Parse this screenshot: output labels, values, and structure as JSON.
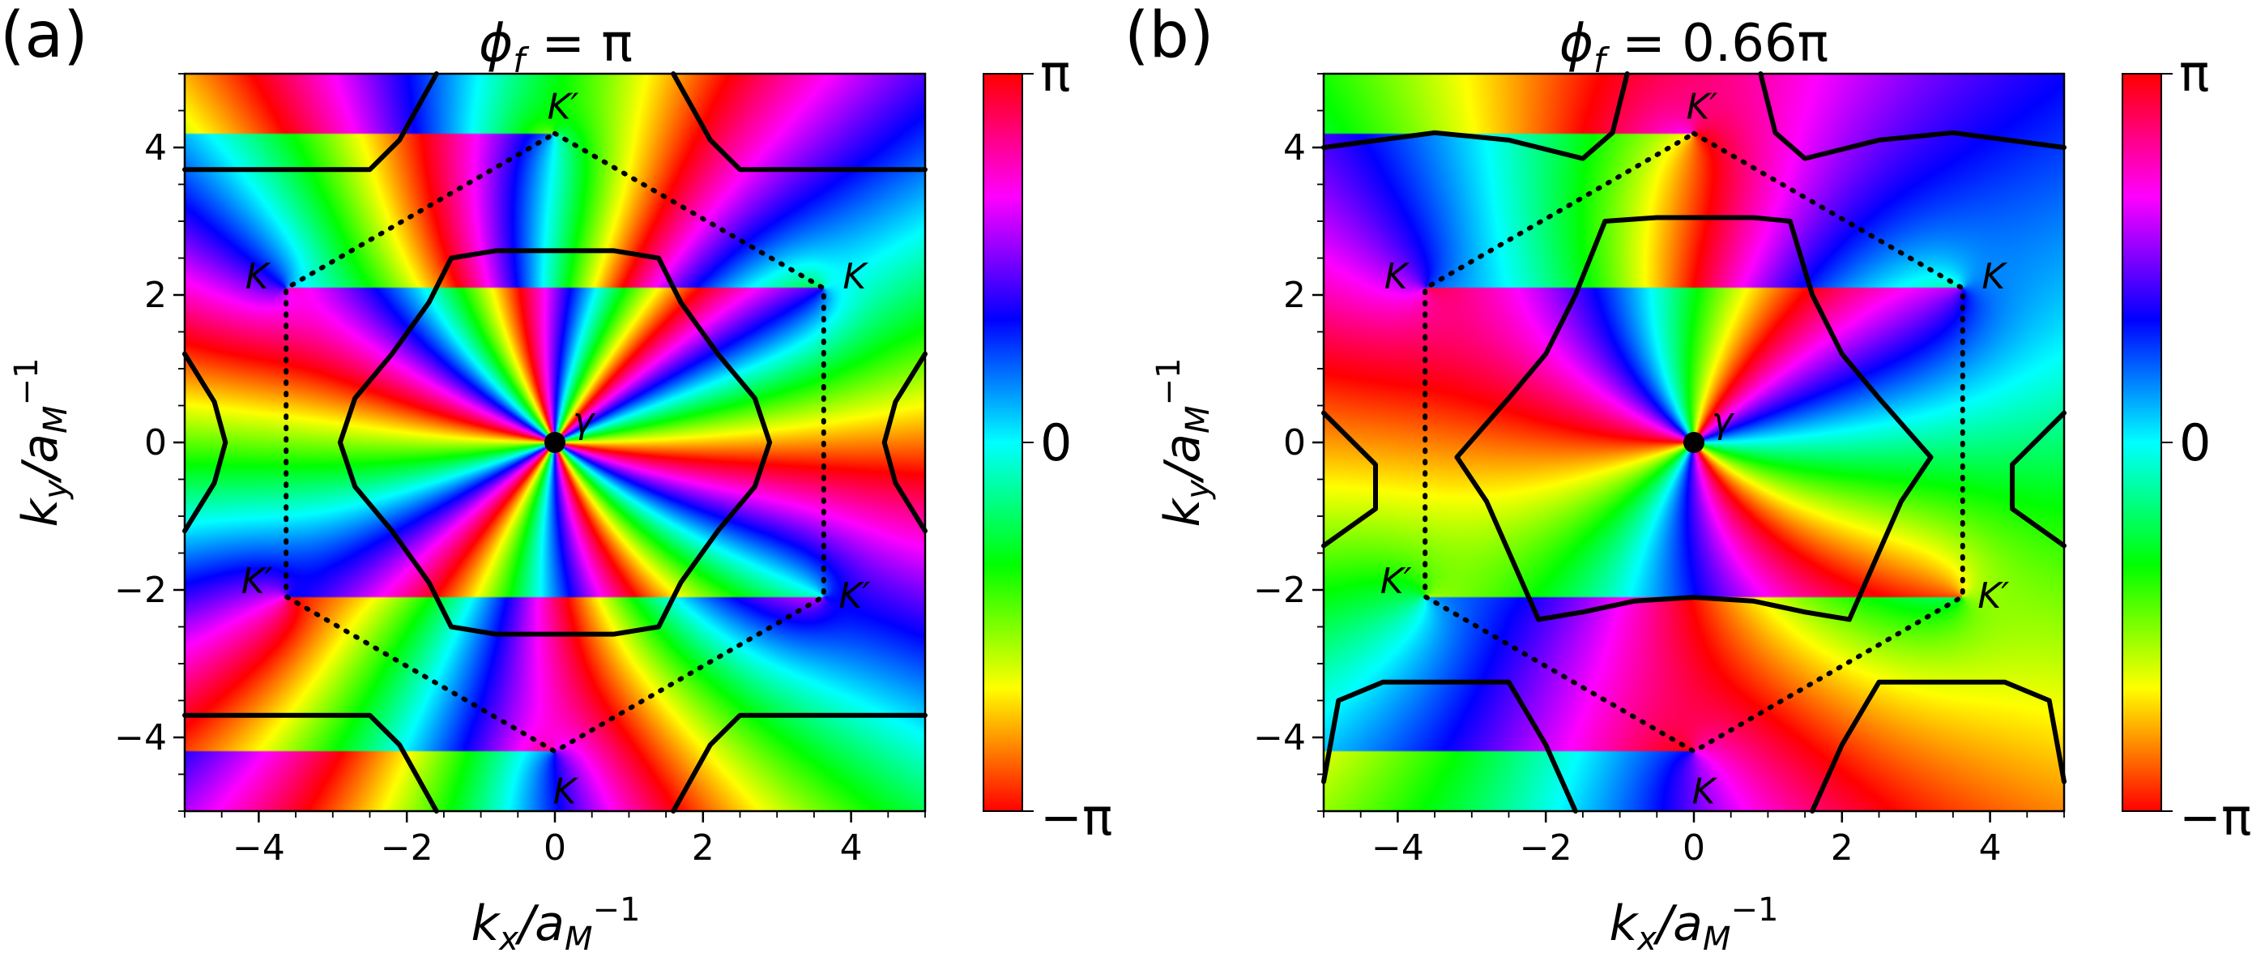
{
  "chart_data": [
    {
      "type": "heatmap",
      "panel_label": "(a)",
      "title": "ϕf = π",
      "title_parts": {
        "symbol": "ϕ",
        "sub": "f",
        "rest": " = π"
      },
      "xlabel": {
        "base": "k",
        "sub": "x",
        "mid": "/a",
        "sub2": "M",
        "sup": "−1"
      },
      "ylabel": {
        "base": "k",
        "sub": "y",
        "mid": "/a",
        "sub2": "M",
        "sup": "−1"
      },
      "xlim": [
        -5,
        5
      ],
      "ylim": [
        -5,
        5
      ],
      "xticks": [
        -4,
        -2,
        0,
        2,
        4
      ],
      "yticks": [
        -4,
        -2,
        0,
        2,
        4
      ],
      "xtick_labels": [
        "−4",
        "−2",
        "0",
        "2",
        "4"
      ],
      "ytick_labels": [
        "−4",
        "−2",
        "0",
        "2",
        "4"
      ],
      "colormap": "hsv",
      "colorbar": {
        "min_label": "−π",
        "mid_label": "0",
        "max_label": "π",
        "range": [
          -3.1416,
          3.1416
        ]
      },
      "phase_field": {
        "winding": 6,
        "offset": 0
      },
      "high_symmetry_points": [
        {
          "label": "γ",
          "x": 0,
          "y": 0,
          "marker": "dot"
        },
        {
          "label": "K",
          "x": -3.63,
          "y": 2.09
        },
        {
          "label": "K",
          "x": 3.63,
          "y": 2.09
        },
        {
          "label": "K",
          "x": 0,
          "y": -4.19
        },
        {
          "label": "K′",
          "x": 0,
          "y": 4.19
        },
        {
          "label": "K′",
          "x": -3.63,
          "y": -2.09
        },
        {
          "label": "K′",
          "x": 3.63,
          "y": -2.09
        }
      ],
      "brillouin_zone": [
        [
          0,
          4.19
        ],
        [
          3.63,
          2.09
        ],
        [
          3.63,
          -2.09
        ],
        [
          0,
          -4.19
        ],
        [
          -3.63,
          -2.09
        ],
        [
          -3.63,
          2.09
        ]
      ],
      "contours": [
        [
          [
            -2.9,
            0
          ],
          [
            -2.7,
            0.6
          ],
          [
            -2.2,
            1.2
          ],
          [
            -1.7,
            1.9
          ],
          [
            -1.4,
            2.5
          ],
          [
            -0.8,
            2.6
          ],
          [
            0,
            2.6
          ],
          [
            0.8,
            2.6
          ],
          [
            1.4,
            2.5
          ],
          [
            1.7,
            1.9
          ],
          [
            2.2,
            1.2
          ],
          [
            2.7,
            0.6
          ],
          [
            2.9,
            0
          ],
          [
            2.7,
            -0.6
          ],
          [
            2.2,
            -1.2
          ],
          [
            1.7,
            -1.9
          ],
          [
            1.4,
            -2.5
          ],
          [
            0.8,
            -2.6
          ],
          [
            0,
            -2.6
          ],
          [
            -0.8,
            -2.6
          ],
          [
            -1.4,
            -2.5
          ],
          [
            -1.7,
            -1.9
          ],
          [
            -2.2,
            -1.2
          ],
          [
            -2.7,
            -0.6
          ],
          [
            -2.9,
            0
          ]
        ],
        [
          [
            -5,
            3.7
          ],
          [
            -3.5,
            3.7
          ],
          [
            -2.5,
            3.7
          ],
          [
            -2.1,
            4.1
          ],
          [
            -1.6,
            5
          ]
        ],
        [
          [
            1.6,
            5
          ],
          [
            2.1,
            4.1
          ],
          [
            2.5,
            3.7
          ],
          [
            3.5,
            3.7
          ],
          [
            5,
            3.7
          ]
        ],
        [
          [
            -5,
            -3.7
          ],
          [
            -3.5,
            -3.7
          ],
          [
            -2.5,
            -3.7
          ],
          [
            -2.1,
            -4.1
          ],
          [
            -1.6,
            -5
          ]
        ],
        [
          [
            1.6,
            -5
          ],
          [
            2.1,
            -4.1
          ],
          [
            2.5,
            -3.7
          ],
          [
            3.5,
            -3.7
          ],
          [
            5,
            -3.7
          ]
        ],
        [
          [
            -5,
            1.2
          ],
          [
            -4.6,
            0.55
          ],
          [
            -4.45,
            0
          ],
          [
            -4.6,
            -0.55
          ],
          [
            -5,
            -1.2
          ]
        ],
        [
          [
            5,
            1.2
          ],
          [
            4.6,
            0.55
          ],
          [
            4.45,
            0
          ],
          [
            4.6,
            -0.55
          ],
          [
            5,
            -1.2
          ]
        ]
      ]
    },
    {
      "type": "heatmap",
      "panel_label": "(b)",
      "title": "ϕf = 0.66π",
      "title_parts": {
        "symbol": "ϕ",
        "sub": "f",
        "rest": " = 0.66π"
      },
      "xlabel": {
        "base": "k",
        "sub": "x",
        "mid": "/a",
        "sub2": "M",
        "sup": "−1"
      },
      "ylabel": {
        "base": "k",
        "sub": "y",
        "mid": "/a",
        "sub2": "M",
        "sup": "−1"
      },
      "xlim": [
        -5,
        5
      ],
      "ylim": [
        -5,
        5
      ],
      "xticks": [
        -4,
        -2,
        0,
        2,
        4
      ],
      "yticks": [
        -4,
        -2,
        0,
        2,
        4
      ],
      "xtick_labels": [
        "−4",
        "−2",
        "0",
        "2",
        "4"
      ],
      "ytick_labels": [
        "−4",
        "−2",
        "0",
        "2",
        "4"
      ],
      "colormap": "hsv",
      "colorbar": {
        "min_label": "−π",
        "mid_label": "0",
        "max_label": "π",
        "range": [
          -3.1416,
          3.1416
        ]
      },
      "phase_field": {
        "winding": 3,
        "offset": 2.07
      },
      "high_symmetry_points": [
        {
          "label": "γ",
          "x": 0,
          "y": 0,
          "marker": "dot"
        },
        {
          "label": "K",
          "x": -3.63,
          "y": 2.09
        },
        {
          "label": "K",
          "x": 3.63,
          "y": 2.09
        },
        {
          "label": "K",
          "x": 0,
          "y": -4.19
        },
        {
          "label": "K′",
          "x": 0,
          "y": 4.19
        },
        {
          "label": "K′",
          "x": -3.63,
          "y": -2.09
        },
        {
          "label": "K′",
          "x": 3.63,
          "y": -2.09
        }
      ],
      "brillouin_zone": [
        [
          0,
          4.19
        ],
        [
          3.63,
          2.09
        ],
        [
          3.63,
          -2.09
        ],
        [
          0,
          -4.19
        ],
        [
          -3.63,
          -2.09
        ],
        [
          -3.63,
          2.09
        ]
      ],
      "contours": [
        [
          [
            -1.2,
            3.0
          ],
          [
            -0.5,
            3.05
          ],
          [
            0.8,
            3.05
          ],
          [
            1.3,
            3.0
          ],
          [
            1.6,
            2.0
          ],
          [
            2.0,
            1.2
          ],
          [
            2.5,
            0.6
          ],
          [
            3.2,
            -0.2
          ],
          [
            2.8,
            -0.8
          ],
          [
            2.1,
            -2.4
          ],
          [
            1.5,
            -2.3
          ],
          [
            0.8,
            -2.15
          ],
          [
            0,
            -2.1
          ],
          [
            -0.8,
            -2.15
          ],
          [
            -1.5,
            -2.3
          ],
          [
            -2.1,
            -2.4
          ],
          [
            -2.8,
            -0.8
          ],
          [
            -3.2,
            -0.2
          ],
          [
            -2.5,
            0.6
          ],
          [
            -2.0,
            1.2
          ],
          [
            -1.6,
            2.0
          ],
          [
            -1.2,
            3.0
          ]
        ],
        [
          [
            -5,
            4.0
          ],
          [
            -3.5,
            4.2
          ],
          [
            -2.5,
            4.1
          ],
          [
            -1.5,
            3.85
          ],
          [
            -1.1,
            4.2
          ],
          [
            -0.9,
            5
          ]
        ],
        [
          [
            0.9,
            5
          ],
          [
            1.1,
            4.2
          ],
          [
            1.5,
            3.85
          ],
          [
            2.5,
            4.1
          ],
          [
            3.5,
            4.2
          ],
          [
            5,
            4.0
          ]
        ],
        [
          [
            -5,
            0.4
          ],
          [
            -4.3,
            -0.3
          ],
          [
            -4.3,
            -0.9
          ],
          [
            -5,
            -1.4
          ]
        ],
        [
          [
            5,
            0.4
          ],
          [
            4.3,
            -0.3
          ],
          [
            4.3,
            -0.9
          ],
          [
            5,
            -1.4
          ]
        ],
        [
          [
            -5,
            -4.6
          ],
          [
            -4.8,
            -3.5
          ],
          [
            -4.2,
            -3.25
          ],
          [
            -2.5,
            -3.25
          ],
          [
            -2.0,
            -4.1
          ],
          [
            -1.6,
            -5
          ]
        ],
        [
          [
            1.6,
            -5
          ],
          [
            2.0,
            -4.1
          ],
          [
            2.5,
            -3.25
          ],
          [
            4.2,
            -3.25
          ],
          [
            4.8,
            -3.5
          ],
          [
            5,
            -4.6
          ]
        ]
      ]
    }
  ]
}
